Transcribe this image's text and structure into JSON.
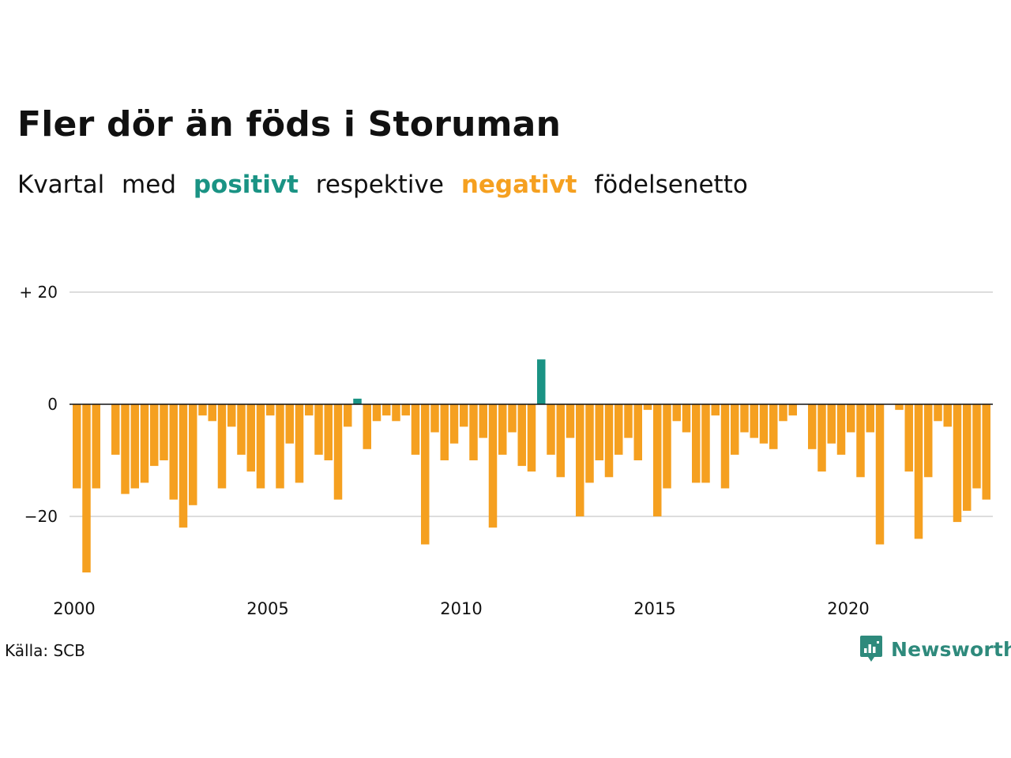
{
  "title": "Fler dör än föds i Storuman",
  "subtitle": {
    "part1": "Kvartal",
    "part2": "med",
    "positive": "positivt",
    "part3": "respektive",
    "negative": "negativt",
    "part4": "födelsenetto"
  },
  "colors": {
    "positive": "#1a9384",
    "negative": "#f5a020",
    "grid": "#dddddd",
    "zero_line": "#111111"
  },
  "source": "Källa: SCB",
  "logo": {
    "icon": "newsworthy-chart-icon",
    "text": "Newsworthy"
  },
  "chart_data": {
    "type": "bar",
    "x_start": 2000,
    "x_step": 0.25,
    "x_ticks": [
      2000,
      2005,
      2010,
      2015,
      2020
    ],
    "x_tick_labels": [
      "2000",
      "2005",
      "2010",
      "2015",
      "2020"
    ],
    "y_ticks": [
      20,
      0,
      -20
    ],
    "y_tick_labels": [
      "+ 20",
      "0",
      "−20"
    ],
    "ylim": [
      -32,
      22
    ],
    "grid": true,
    "values": [
      -15,
      -30,
      -15,
      0,
      -9,
      -16,
      -15,
      -14,
      -11,
      -10,
      -17,
      -22,
      -18,
      -2,
      -3,
      -15,
      -4,
      -9,
      -12,
      -15,
      -2,
      -15,
      -7,
      -14,
      -2,
      -9,
      -10,
      -17,
      -4,
      1,
      -8,
      -3,
      -2,
      -3,
      -2,
      -9,
      -25,
      -5,
      -10,
      -7,
      -4,
      -10,
      -6,
      -22,
      -9,
      -5,
      -11,
      -12,
      8,
      -9,
      -13,
      -6,
      -20,
      -14,
      -10,
      -13,
      -9,
      -6,
      -10,
      -1,
      -20,
      -15,
      -3,
      -5,
      -14,
      -14,
      -2,
      -15,
      -9,
      -5,
      -6,
      -7,
      -8,
      -3,
      -2,
      0,
      -8,
      -12,
      -7,
      -9,
      -5,
      -13,
      -5,
      -25,
      0,
      -1,
      -12,
      -24,
      -13,
      -3,
      -4,
      -21,
      -19,
      -15,
      -17
    ]
  }
}
